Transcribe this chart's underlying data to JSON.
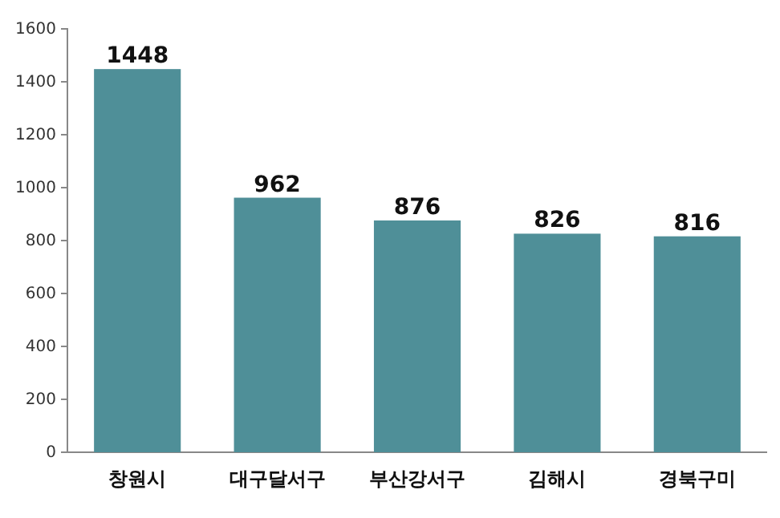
{
  "chart_data": {
    "type": "bar",
    "categories": [
      "창원시",
      "대구달서구",
      "부산강서구",
      "김해시",
      "경북구미"
    ],
    "values": [
      1448,
      962,
      876,
      826,
      816
    ],
    "color": "#4f8f98",
    "ylim": [
      0,
      1600
    ],
    "yticks": [
      0,
      200,
      400,
      600,
      800,
      1000,
      1200,
      1400,
      1600
    ],
    "data_labels": true,
    "grid": false
  }
}
